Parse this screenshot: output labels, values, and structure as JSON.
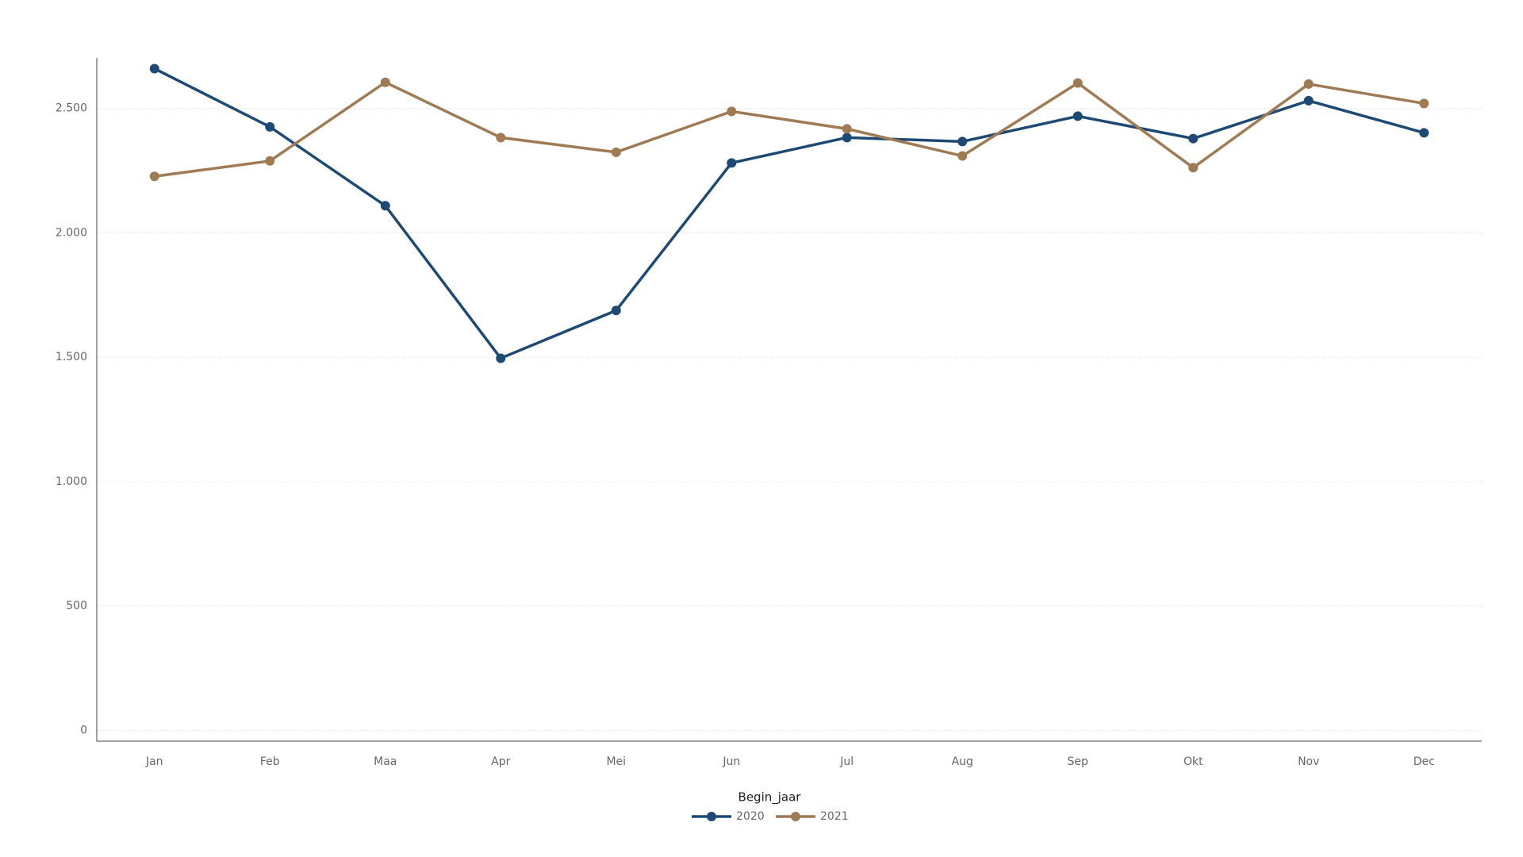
{
  "chart_data": {
    "type": "line",
    "categories": [
      "Jan",
      "Feb",
      "Maa",
      "Apr",
      "Mei",
      "Jun",
      "Jul",
      "Aug",
      "Sep",
      "Okt",
      "Nov",
      "Dec"
    ],
    "series": [
      {
        "name": "2020",
        "color": "#1d4a75",
        "values": [
          2660,
          2426,
          2109,
          1496,
          1688,
          2281,
          2383,
          2367,
          2469,
          2379,
          2531,
          2402
        ]
      },
      {
        "name": "2021",
        "color": "#a07a53",
        "values": [
          2227,
          2289,
          2605,
          2383,
          2324,
          2488,
          2418,
          2309,
          2602,
          2262,
          2598,
          2520
        ]
      }
    ],
    "ylim": [
      -43,
      2703
    ],
    "yticks": [
      0,
      500,
      {
        "value": 1000,
        "label": "1.000"
      },
      {
        "value": 1500,
        "label": "1.500"
      },
      {
        "value": 2000,
        "label": "2.000"
      },
      {
        "value": 2500,
        "label": "2.500"
      }
    ],
    "grid": true,
    "legend_title": "Begin_jaar",
    "legend": "bottom"
  }
}
